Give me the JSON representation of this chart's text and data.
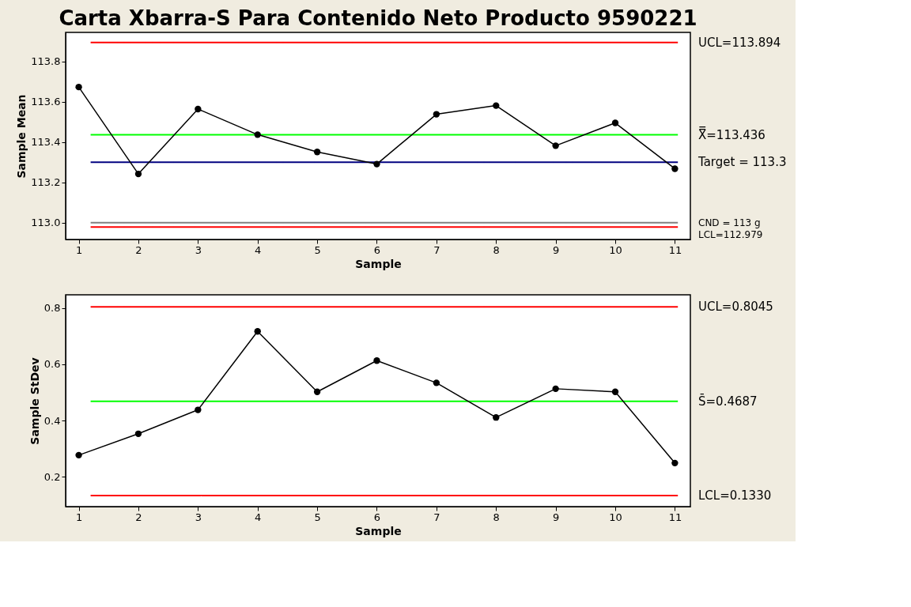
{
  "chart_data": [
    {
      "type": "line",
      "title": "Carta Xbarra-S Para Contenido Neto Producto 9590221",
      "xlabel": "Sample",
      "ylabel": "Sample Mean",
      "x": [
        1,
        2,
        3,
        4,
        5,
        6,
        7,
        8,
        9,
        10,
        11
      ],
      "marker": "circle",
      "grid": false,
      "series": [
        {
          "color": "#000000",
          "values": [
            113.673,
            113.242,
            113.564,
            113.437,
            113.351,
            113.291,
            113.538,
            113.581,
            113.382,
            113.495,
            113.268
          ]
        }
      ],
      "xlim": [
        0.78,
        11.26
      ],
      "xticks": [
        1,
        2,
        3,
        4,
        5,
        6,
        7,
        8,
        9,
        10,
        11
      ],
      "ylim": [
        112.917,
        113.944
      ],
      "yticks": [
        {
          "value": 113.0,
          "label": "113.0"
        },
        113.2,
        113.4,
        113.6,
        113.8
      ],
      "ref_lines": [
        {
          "axis": "y",
          "value": 113.894,
          "label": "UCL=113.894",
          "color": "#ff0000"
        },
        {
          "axis": "y",
          "value": 113.436,
          "label": "X̿=113.436",
          "color": "#00ff00"
        },
        {
          "axis": "y",
          "value": 113.3,
          "label": "Target = 113.3",
          "color": "#000080"
        },
        {
          "axis": "y",
          "value": 113.0,
          "label": "CND = 113 g",
          "color": "#808080"
        },
        {
          "axis": "y",
          "value": 112.979,
          "label": "LCL=112.979",
          "color": "#ff0000"
        }
      ]
    },
    {
      "type": "line",
      "xlabel": "Sample",
      "ylabel": "Sample StDev",
      "x": [
        1,
        2,
        3,
        4,
        5,
        6,
        7,
        8,
        9,
        10,
        11
      ],
      "marker": "circle",
      "grid": false,
      "series": [
        {
          "color": "#000000",
          "values": [
            0.277,
            0.353,
            0.438,
            0.717,
            0.502,
            0.613,
            0.534,
            0.411,
            0.513,
            0.502,
            0.249
          ]
        }
      ],
      "xlim": [
        0.78,
        11.26
      ],
      "xticks": [
        1,
        2,
        3,
        4,
        5,
        6,
        7,
        8,
        9,
        10,
        11
      ],
      "ylim": [
        0.094,
        0.847
      ],
      "yticks": [
        0.2,
        0.4,
        0.6,
        0.8
      ],
      "ref_lines": [
        {
          "axis": "y",
          "value": 0.8045,
          "label": "UCL=0.8045",
          "color": "#ff0000"
        },
        {
          "axis": "y",
          "value": 0.4687,
          "label": "S̄=0.4687",
          "color": "#00ff00"
        },
        {
          "axis": "y",
          "value": 0.133,
          "label": "LCL=0.1330",
          "color": "#ff0000"
        }
      ]
    }
  ]
}
